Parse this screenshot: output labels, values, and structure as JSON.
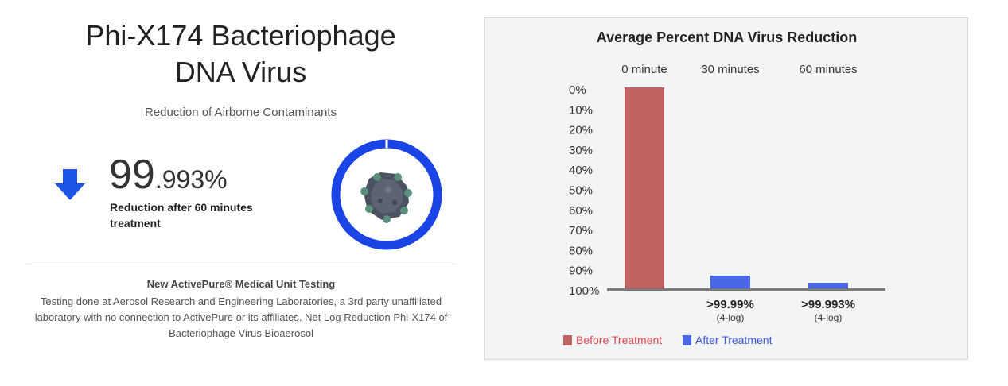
{
  "left": {
    "title_line1": "Phi-X174 Bacteriophage",
    "title_line2": "DNA Virus",
    "subtitle": "Reduction of Airborne Contaminants",
    "stat_integer": "99",
    "stat_decimal": ".993%",
    "stat_caption": "Reduction after 60 minutes treatment",
    "ring_color": "#1a44e6",
    "arrow_color": "#1a55e8",
    "note_title": "New ActivePure® Medical Unit Testing",
    "note_body": "Testing done at Aerosol Research and Engineering Laboratories, a 3rd party unaffiliated laboratory with no connection to ActivePure or its affiliates. Net Log Reduction Phi-X174 of Bacteriophage Virus Bioaerosol"
  },
  "chart_data": {
    "type": "bar",
    "title": "Average Percent DNA Virus Reduction",
    "categories": [
      "0 minute",
      "30 minutes",
      "60 minutes"
    ],
    "y_ticks": [
      "0%",
      "10%",
      "20%",
      "30%",
      "40%",
      "50%",
      "60%",
      "70%",
      "80%",
      "90%",
      "100%"
    ],
    "ylim": [
      0,
      100
    ],
    "y_inverted": true,
    "bars": [
      {
        "category": "0 minute",
        "series": "Before Treatment",
        "value": 0,
        "color": "#c06262",
        "label": "",
        "sublabel": ""
      },
      {
        "category": "30 minutes",
        "series": "After Treatment",
        "value": 99.99,
        "color": "#4a67e8",
        "label": ">99.99%",
        "sublabel": "(4-log)"
      },
      {
        "category": "60 minutes",
        "series": "After Treatment",
        "value": 99.993,
        "color": "#4a67e8",
        "label": ">99.993%",
        "sublabel": "(4-log)"
      }
    ],
    "legend": [
      {
        "name": "Before Treatment",
        "color": "#c06262",
        "text_color": "#e0484e"
      },
      {
        "name": "After Treatment",
        "color": "#4a67e8",
        "text_color": "#3b58d9"
      }
    ],
    "legend_position": "bottom-left",
    "baseline_color": "#7a7a7a"
  }
}
